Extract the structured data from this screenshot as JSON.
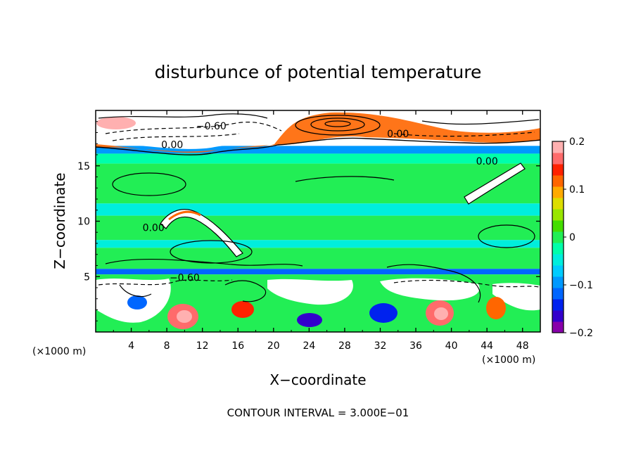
{
  "chart_data": {
    "type": "heatmap",
    "title": "disturbunce of potential temperature",
    "xlabel": "X−coordinate",
    "ylabel": "Z−coordinate",
    "x_unit": "(×1000 m)",
    "y_unit": "(×1000 m)",
    "xlim": [
      0,
      50
    ],
    "ylim": [
      0,
      20
    ],
    "x_ticks": [
      4,
      8,
      12,
      16,
      20,
      24,
      28,
      32,
      36,
      40,
      44,
      48
    ],
    "y_ticks": [
      5,
      10,
      15
    ],
    "x_tick_labels": [
      "4",
      "8",
      "12",
      "16",
      "20",
      "24",
      "28",
      "32",
      "36",
      "40",
      "44",
      "48"
    ],
    "y_tick_labels": [
      "5",
      "10",
      "15"
    ],
    "colorbar": {
      "range": [
        -0.2,
        0.2
      ],
      "tick_values": [
        0.2,
        0.1,
        0,
        -0.1,
        -0.2
      ],
      "tick_labels": [
        "0.2",
        "0.1",
        "0",
        "−0.1",
        "−0.2"
      ],
      "colors": [
        "#8800aa",
        "#3300cc",
        "#0022ee",
        "#0066ff",
        "#0099ff",
        "#00ccff",
        "#00eedd",
        "#00ffaa",
        "#22ee55",
        "#44dd00",
        "#99e600",
        "#dddd00",
        "#ffaa00",
        "#ff6600",
        "#ff2200",
        "#ff6b6b",
        "#ffb0b0"
      ]
    },
    "contour_labels": [
      {
        "text": "−0.60",
        "x": 13.0,
        "z": 18.3
      },
      {
        "text": "0.00",
        "x": 8.6,
        "z": 16.6
      },
      {
        "text": "0.00",
        "x": 34.0,
        "z": 17.6
      },
      {
        "text": "0.00",
        "x": 44.0,
        "z": 15.1
      },
      {
        "text": "0.00",
        "x": 6.5,
        "z": 9.1
      },
      {
        "text": "−0.60",
        "x": 10.0,
        "z": 4.6
      }
    ],
    "bands": [
      {
        "z_top": 20.0,
        "z_bottom": 16.8,
        "value": "high"
      },
      {
        "z_top": 16.8,
        "z_bottom": 16.1,
        "value": -0.1
      },
      {
        "z_top": 16.1,
        "z_bottom": 15.2,
        "value": -0.03
      },
      {
        "z_top": 15.2,
        "z_bottom": 11.6,
        "value": 0.01
      },
      {
        "z_top": 11.6,
        "z_bottom": 10.5,
        "value": -0.05
      },
      {
        "z_top": 10.5,
        "z_bottom": 8.3,
        "value": 0.01
      },
      {
        "z_top": 8.3,
        "z_bottom": 7.6,
        "value": -0.04
      },
      {
        "z_top": 7.6,
        "z_bottom": 5.7,
        "value": 0.0
      },
      {
        "z_top": 5.7,
        "z_bottom": 5.2,
        "value": -0.12
      },
      {
        "z_top": 5.2,
        "z_bottom": 0.0,
        "value": "mixed"
      }
    ],
    "contour_interval_note": "CONTOUR INTERVAL = 3.000E−01"
  }
}
